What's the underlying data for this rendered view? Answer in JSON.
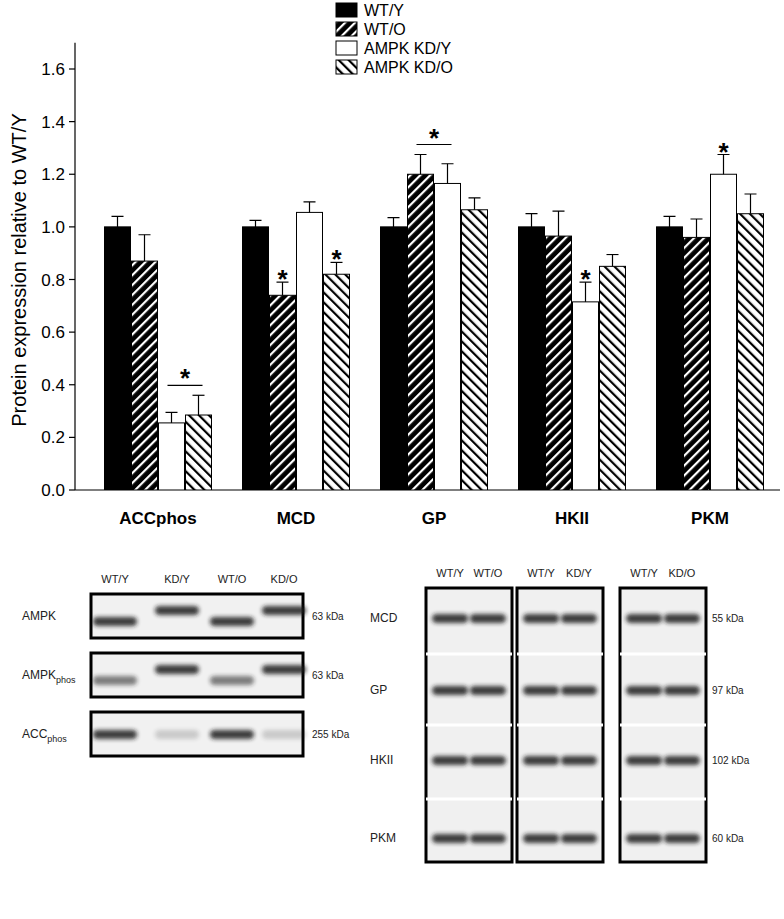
{
  "chart_data": {
    "type": "bar",
    "y_label": "Protein expression relative to WT/Y",
    "categories": [
      "ACCphos",
      "MCD",
      "GP",
      "HKII",
      "PKM"
    ],
    "series": [
      {
        "name": "WT/Y",
        "color": "#000000",
        "line_style": "solid",
        "values": [
          1.0,
          1.0,
          1.0,
          1.0,
          1.0
        ],
        "errors": [
          0.04,
          0.025,
          0.035,
          0.05,
          0.04
        ]
      },
      {
        "name": "WT/O",
        "color": "#000000",
        "line_style": "hatched",
        "values": [
          0.87,
          0.74,
          1.2,
          0.965,
          0.96
        ],
        "errors": [
          0.1,
          0.05,
          0.075,
          0.095,
          0.07
        ]
      },
      {
        "name": "AMPK KD/Y",
        "color": "#ffffff",
        "line_style": "solid",
        "values": [
          0.255,
          1.055,
          1.165,
          0.715,
          1.2
        ],
        "errors": [
          0.04,
          0.04,
          0.075,
          0.075,
          0.075
        ]
      },
      {
        "name": "AMPK KD/O",
        "color": "#ffffff",
        "line_style": "hatched",
        "values": [
          0.285,
          0.82,
          1.065,
          0.85,
          1.05
        ],
        "errors": [
          0.075,
          0.045,
          0.045,
          0.045,
          0.075
        ]
      }
    ],
    "ylim": [
      0,
      1.7
    ],
    "yticks": [
      {
        "value": 0,
        "label": "0.0"
      },
      0.2,
      0.4,
      0.6,
      0.8,
      {
        "value": 1,
        "label": "1.0"
      },
      1.2,
      1.4,
      1.6
    ],
    "legend": "top",
    "annotations": [
      {
        "text": "*",
        "category": "ACCphos",
        "series": [
          "AMPK KD/Y",
          "AMPK KD/O"
        ]
      },
      {
        "text": "*",
        "category": "MCD",
        "series": [
          "WT/O"
        ]
      },
      {
        "text": "*",
        "category": "MCD",
        "series": [
          "AMPK KD/O"
        ]
      },
      {
        "text": "*",
        "category": "GP",
        "series": [
          "WT/O",
          "AMPK KD/Y"
        ]
      },
      {
        "text": "*",
        "category": "HKII",
        "series": [
          "AMPK KD/Y"
        ]
      },
      {
        "text": "*",
        "category": "PKM",
        "series": [
          "AMPK KD/Y"
        ]
      }
    ]
  },
  "blots": {
    "left": {
      "columns": [
        "WT/Y",
        "KD/Y",
        "WT/O",
        "KD/O"
      ],
      "rows": [
        {
          "label": "AMPK",
          "subscript": "",
          "size": "63 kDa"
        },
        {
          "label": "AMPK",
          "subscript": "phos",
          "size": "63 kDa"
        },
        {
          "label": "ACC",
          "subscript": "phos",
          "size": "255 kDa"
        }
      ]
    },
    "right": {
      "panels": [
        {
          "columns": [
            "WT/Y",
            "WT/O"
          ]
        },
        {
          "columns": [
            "WT/Y",
            "KD/Y"
          ]
        },
        {
          "columns": [
            "WT/Y",
            "KD/O"
          ]
        }
      ],
      "rows": [
        {
          "label": "MCD",
          "size": "55 kDa"
        },
        {
          "label": "GP",
          "size": "97 kDa"
        },
        {
          "label": "HKII",
          "size": "102 kDa"
        },
        {
          "label": "PKM",
          "size": "60 kDa"
        }
      ]
    }
  }
}
